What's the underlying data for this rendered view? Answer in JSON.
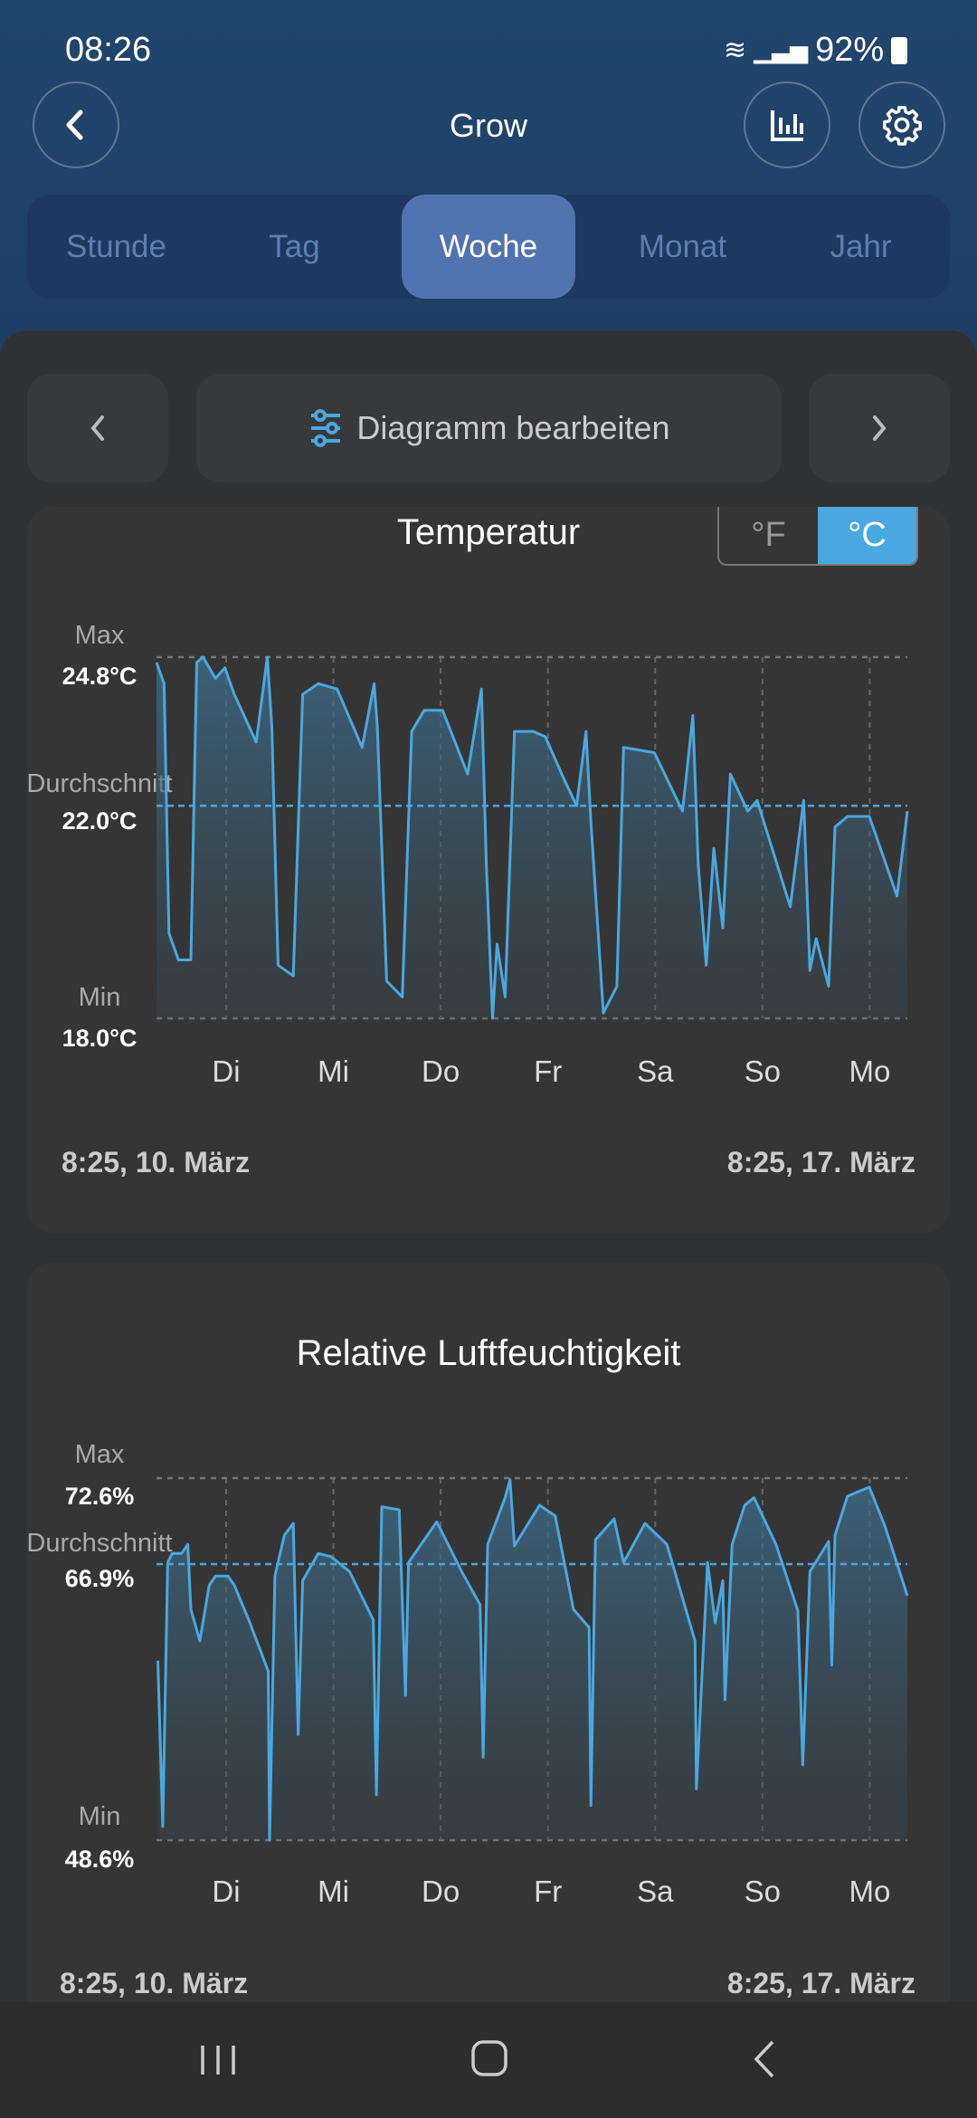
{
  "status_bar": {
    "time": "08:26",
    "battery": "92%"
  },
  "header": {
    "title": "Grow"
  },
  "tabs": [
    {
      "label": "Stunde"
    },
    {
      "label": "Tag"
    },
    {
      "label": "Woche",
      "active": true
    },
    {
      "label": "Monat"
    },
    {
      "label": "Jahr"
    }
  ],
  "toolbar": {
    "edit_label": "Diagramm bearbeiten"
  },
  "colors": {
    "accent": "#4aa8e0",
    "active_tab": "#5174b0"
  },
  "temperature_card": {
    "title": "Temperatur",
    "unit_f": "°F",
    "unit_c": "°C",
    "selected_unit": "°C",
    "max_label": "Max",
    "max_value": "24.8°C",
    "avg_label": "Durchschnitt",
    "avg_value": "22.0°C",
    "min_label": "Min",
    "min_value": "18.0°C",
    "start_date": "8:25,  10. März",
    "end_date": "8:25,  17. März"
  },
  "humidity_card": {
    "title": "Relative Luftfeuchtigkeit",
    "max_label": "Max",
    "max_value": "72.6%",
    "avg_label": "Durchschnitt",
    "avg_value": "66.9%",
    "min_label": "Min",
    "min_value": "48.6%",
    "start_date": "8:25,  10. März",
    "end_date": "8:25,  17. März"
  },
  "chart_data": [
    {
      "type": "area",
      "title": "Temperatur",
      "x_unit": "hours since 8:25, 10. März",
      "xlim": [
        0,
        168
      ],
      "ylim": [
        18.0,
        24.8
      ],
      "average": 22.0,
      "day_ticks": [
        {
          "label": "Di",
          "x": 15.58
        },
        {
          "label": "Mi",
          "x": 39.58
        },
        {
          "label": "Do",
          "x": 63.58
        },
        {
          "label": "Fr",
          "x": 87.58
        },
        {
          "label": "Sa",
          "x": 111.58
        },
        {
          "label": "So",
          "x": 135.58
        },
        {
          "label": "Mo",
          "x": 159.58
        }
      ],
      "x": [
        0,
        1.7,
        2.8,
        4.9,
        7.7,
        9,
        10.4,
        13.2,
        15.3,
        17.4,
        22.3,
        24.8,
        25.8,
        27.2,
        30.6,
        32.7,
        36.2,
        40.4,
        46,
        48.7,
        49.4,
        51.5,
        55,
        57.1,
        59.9,
        64,
        69.6,
        72.7,
        73.8,
        75.2,
        76.2,
        78,
        80.1,
        84.3,
        87,
        91.2,
        94,
        96.1,
        97.2,
        100,
        103,
        104.5,
        111.4,
        117.7,
        120,
        121.2,
        123,
        124.7,
        126.7,
        128.4,
        132.3,
        134.4,
        141.8,
        144.8,
        146.2,
        147.6,
        150.4,
        151.8,
        154.6,
        159.5,
        165.7,
        168
      ],
      "y": [
        24.7,
        24.3,
        19.6,
        19.1,
        19.1,
        24.7,
        24.8,
        24.4,
        24.6,
        24.1,
        23.2,
        24.8,
        23.5,
        19.0,
        18.8,
        24.1,
        24.3,
        24.2,
        23.1,
        24.3,
        23.5,
        18.7,
        18.4,
        23.4,
        23.8,
        23.8,
        22.6,
        24.2,
        20.9,
        18.0,
        19.4,
        18.4,
        23.4,
        23.4,
        23.3,
        22.5,
        22.0,
        23.4,
        21.7,
        18.1,
        18.6,
        23.1,
        23.0,
        21.9,
        23.7,
        20.9,
        19.0,
        21.2,
        19.7,
        22.6,
        21.9,
        22.1,
        20.1,
        22.1,
        18.9,
        19.5,
        18.6,
        21.6,
        21.8,
        21.8,
        20.3,
        21.9
      ]
    },
    {
      "type": "area",
      "title": "Relative Luftfeuchtigkeit",
      "x_unit": "hours since 8:25, 10. März",
      "xlim": [
        0,
        168
      ],
      "ylim": [
        48.6,
        72.6
      ],
      "average": 66.9,
      "day_ticks": [
        {
          "label": "Di",
          "x": 15.58
        },
        {
          "label": "Mi",
          "x": 39.58
        },
        {
          "label": "Do",
          "x": 63.58
        },
        {
          "label": "Fr",
          "x": 87.58
        },
        {
          "label": "Sa",
          "x": 111.58
        },
        {
          "label": "So",
          "x": 135.58
        },
        {
          "label": "Mo",
          "x": 159.58
        }
      ],
      "x": [
        0.3,
        1.4,
        2.5,
        3.5,
        5.6,
        7,
        7.7,
        9.7,
        11.8,
        13.2,
        16,
        17.4,
        20.9,
        25,
        25.3,
        26.5,
        28.6,
        30.6,
        31.7,
        32.7,
        36.2,
        39,
        43.2,
        48.5,
        49.2,
        50.4,
        54.3,
        55.7,
        56.4,
        62.7,
        68.3,
        72.4,
        73.1,
        74.1,
        78,
        79.1,
        80.1,
        85.7,
        89.2,
        93.3,
        96.8,
        97.2,
        98.2,
        102.4,
        104.5,
        109.3,
        114.2,
        120.5,
        120.8,
        123.3,
        125,
        126.7,
        127.2,
        128.8,
        131.6,
        133.7,
        138.6,
        143.5,
        144.6,
        146.2,
        150.4,
        151.1,
        151.8,
        154.6,
        159.5,
        163,
        168
      ],
      "y": [
        60.5,
        49.5,
        67.0,
        67.6,
        67.6,
        68.2,
        63.9,
        61.8,
        65.5,
        66.1,
        66.1,
        65.5,
        63.0,
        59.8,
        48.6,
        66.1,
        68.8,
        69.6,
        55.6,
        65.8,
        67.6,
        67.4,
        66.4,
        63.2,
        51.6,
        70.7,
        70.5,
        58.2,
        67.0,
        69.7,
        66.4,
        64.2,
        54.1,
        68.2,
        71.3,
        72.5,
        68.1,
        70.8,
        70.1,
        63.9,
        62.7,
        50.9,
        68.5,
        69.9,
        67.0,
        69.6,
        68.2,
        61.8,
        52.0,
        67.0,
        63.0,
        65.8,
        57.9,
        68.2,
        70.8,
        71.3,
        68.2,
        63.8,
        53.6,
        66.4,
        68.4,
        60.2,
        68.8,
        71.4,
        72.0,
        69.4,
        64.8
      ]
    }
  ]
}
